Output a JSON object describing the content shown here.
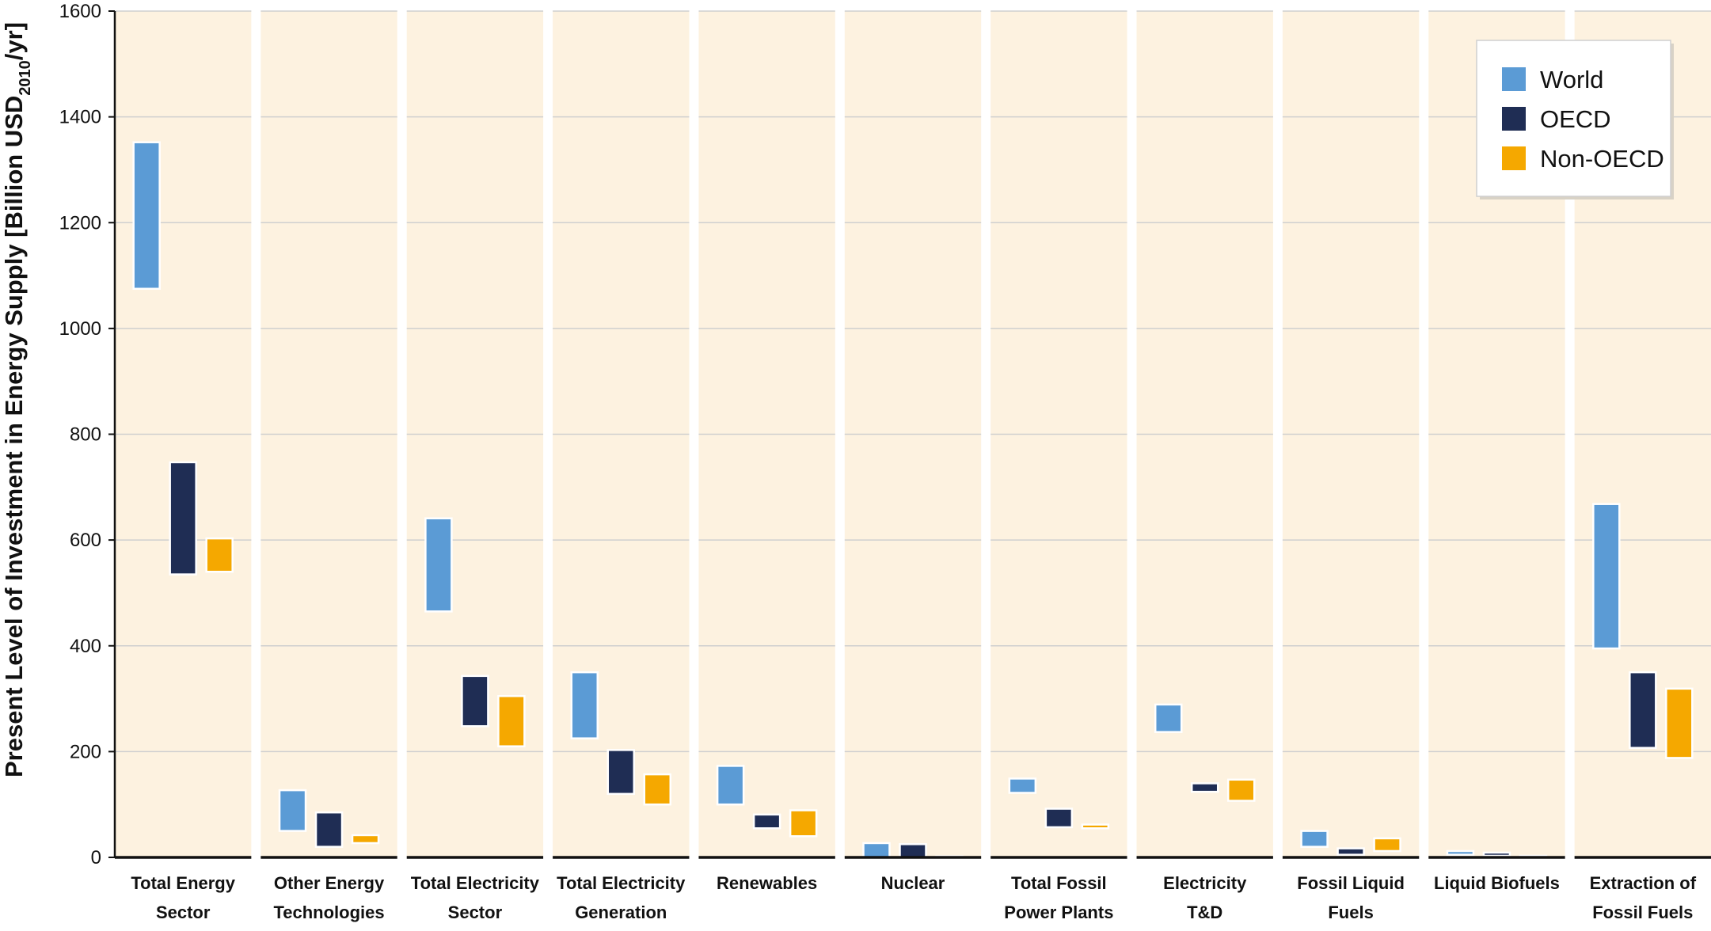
{
  "chart_data": {
    "type": "floating-bar",
    "ylabel": "Present Level of Investment in Energy Supply [Billion USD2010/yr]",
    "ylabel_parts": {
      "main": "Present Level of Investment in Energy Supply [Billion USD",
      "subscript": "2010",
      "suffix": "/yr]"
    },
    "ylim": [
      0,
      1600
    ],
    "yticks": [
      0,
      200,
      400,
      600,
      800,
      1000,
      1200,
      1400,
      1600
    ],
    "grid": true,
    "legend_position": "top-right",
    "categories": [
      [
        "Total Energy",
        "Sector"
      ],
      [
        "Other Energy",
        "Technologies"
      ],
      [
        "Total Electricity",
        "Sector"
      ],
      [
        "Total Electricity",
        "Generation"
      ],
      [
        "Renewables"
      ],
      [
        "Nuclear"
      ],
      [
        "Total Fossil",
        "Power Plants"
      ],
      [
        "Electricity",
        "T&D"
      ],
      [
        "Fossil Liquid",
        "Fuels"
      ],
      [
        "Liquid Biofuels"
      ],
      [
        "Extraction of",
        "Fossil Fuels"
      ]
    ],
    "series": [
      {
        "name": "World",
        "color": "#5b9bd5",
        "ranges": [
          [
            1075,
            1352
          ],
          [
            50,
            127
          ],
          [
            465,
            641
          ],
          [
            225,
            350
          ],
          [
            100,
            173
          ],
          [
            0,
            27
          ],
          [
            122,
            149
          ],
          [
            237,
            289
          ],
          [
            20,
            50
          ],
          [
            5,
            12
          ],
          [
            395,
            668
          ]
        ]
      },
      {
        "name": "OECD",
        "color": "#1f2d54",
        "ranges": [
          [
            535,
            747
          ],
          [
            20,
            85
          ],
          [
            248,
            343
          ],
          [
            120,
            203
          ],
          [
            55,
            81
          ],
          [
            0,
            25
          ],
          [
            57,
            92
          ],
          [
            124,
            140
          ],
          [
            5,
            17
          ],
          [
            3,
            9
          ],
          [
            207,
            350
          ]
        ]
      },
      {
        "name": "Non-OECD",
        "color": "#f5a800",
        "ranges": [
          [
            540,
            603
          ],
          [
            27,
            42
          ],
          [
            210,
            305
          ],
          [
            100,
            157
          ],
          [
            40,
            89
          ],
          [
            0,
            2
          ],
          [
            55,
            62
          ],
          [
            107,
            147
          ],
          [
            12,
            36
          ],
          [
            0,
            3
          ],
          [
            188,
            319
          ]
        ]
      }
    ]
  }
}
